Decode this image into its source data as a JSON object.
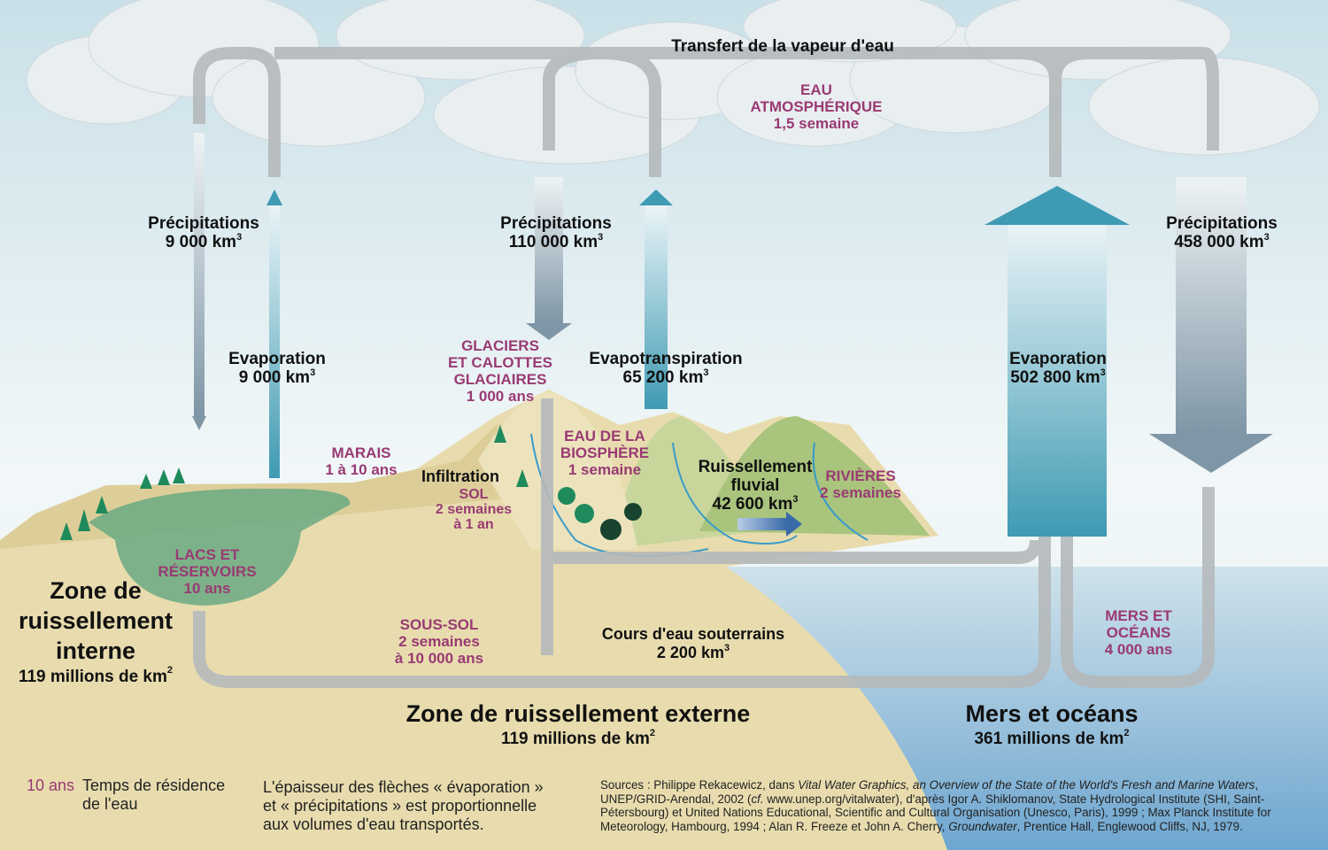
{
  "title": "Transfert de la vapeur d'eau",
  "colors": {
    "reservoir_label": "#993a73",
    "sky": "#dfeef3",
    "land": "#e8dcae",
    "ocean": "#7fb2d4",
    "pipe": "#b5b9bb",
    "evap_arrow": "#3f9ab3"
  },
  "atmosphere": {
    "name": "EAU ATMOSPHÉRIQUE",
    "time": "1,5 semaine"
  },
  "flows": {
    "precip_internal": {
      "label": "Précipitations",
      "value": "9 000 km",
      "unit_sup": "3"
    },
    "evap_internal": {
      "label": "Evaporation",
      "value": "9 000 km",
      "unit_sup": "3"
    },
    "precip_external": {
      "label": "Précipitations",
      "value": "110 000 km",
      "unit_sup": "3"
    },
    "evapotranspiration": {
      "label": "Evapotranspiration",
      "value": "65 200 km",
      "unit_sup": "3"
    },
    "evap_ocean": {
      "label": "Evaporation",
      "value": "502 800 km",
      "unit_sup": "3"
    },
    "precip_ocean": {
      "label": "Précipitations",
      "value": "458 000 km",
      "unit_sup": "3"
    },
    "runoff": {
      "label1": "Ruissellement",
      "label2": "fluvial",
      "value": "42 600 km",
      "unit_sup": "3"
    },
    "infiltration": {
      "label": "Infiltration"
    },
    "groundwater": {
      "label": "Cours d'eau souterrains",
      "value": "2 200 km",
      "unit_sup": "3"
    }
  },
  "reservoirs": {
    "glaciers": {
      "l1": "GLACIERS",
      "l2": "ET CALOTTES",
      "l3": "GLACIAIRES",
      "time": "1 000 ans"
    },
    "marais": {
      "name": "MARAIS",
      "time": "1 à 10 ans"
    },
    "sol": {
      "name": "SOL",
      "time1": "2 semaines",
      "time2": "à 1 an"
    },
    "biosphere": {
      "l1": "EAU DE LA",
      "l2": "BIOSPHÈRE",
      "time": "1 semaine"
    },
    "rivieres": {
      "name": "RIVIÈRES",
      "time": "2 semaines"
    },
    "lacs": {
      "l1": "LACS ET",
      "l2": "RÉSERVOIRS",
      "time": "10 ans"
    },
    "sous_sol": {
      "name": "SOUS-SOL",
      "time1": "2 semaines",
      "time2": "à 10 000 ans"
    },
    "mers": {
      "l1": "MERS ET",
      "l2": "OCÉANS",
      "time": "4 000 ans"
    }
  },
  "zones": {
    "interne": {
      "l1": "Zone de",
      "l2": "ruissellement",
      "l3": "interne",
      "area": "119 millions de km",
      "sup": "2"
    },
    "externe": {
      "name": "Zone de ruissellement externe",
      "area": "119 millions de km",
      "sup": "2"
    },
    "oceans": {
      "name": "Mers et océans",
      "area": "361 millions de km",
      "sup": "2"
    }
  },
  "legend": {
    "sample": "10 ans",
    "text1": "Temps de résidence",
    "text2": "de l'eau"
  },
  "note": {
    "l1": "L'épaisseur des flèches « évaporation »",
    "l2": "et « précipitations » est proportionnelle",
    "l3": "aux volumes d'eau transportés."
  },
  "sources": {
    "prefix": "Sources : Philippe Rekacewicz, dans ",
    "title1": "Vital Water Graphics, an Overview of the State of the World's Fresh and Marine Waters",
    "mid1": ", UNEP/GRID-Arendal, 2002 (",
    "cf": "cf.",
    "mid2": " www.unep.org/vitalwater), d'après Igor A. Shiklomanov, State Hydrological Institute (SHI, Saint-Pétersbourg) et United Nations Educational, Scientific and Cultural Organisation (Unesco, Paris), 1999 ; Max Planck Institute for Meteorology, Hambourg, 1994 ; Alan R. Freeze et John A. Cherry, ",
    "title2": "Groundwater",
    "end": ", Prentice Hall, Englewood Cliffs, NJ, 1979."
  }
}
